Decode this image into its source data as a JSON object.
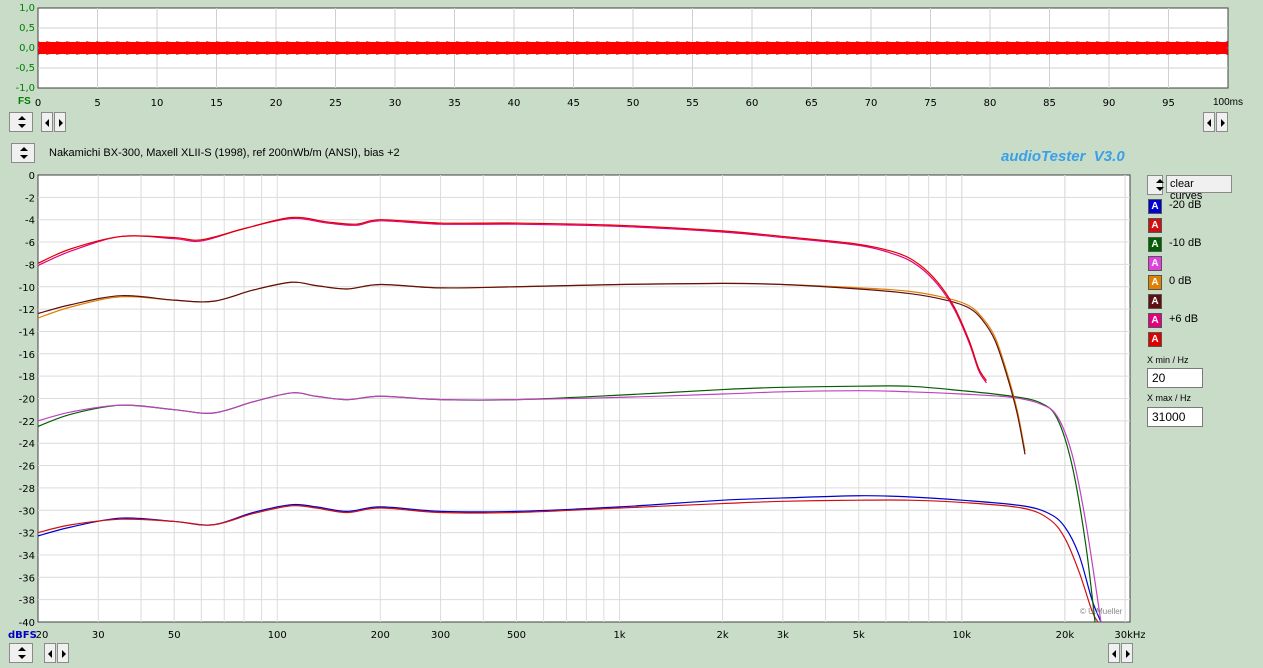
{
  "scope": {
    "fs_label": "FS",
    "y_ticks": [
      "1,0",
      "0,5",
      "0,0",
      "-0,5",
      "-1,0"
    ],
    "x_ticks": [
      "0",
      "5",
      "10",
      "15",
      "20",
      "25",
      "30",
      "35",
      "40",
      "45",
      "50",
      "55",
      "60",
      "65",
      "70",
      "75",
      "80",
      "85",
      "90",
      "95"
    ],
    "x_end_label": "100ms",
    "signal_color": "#ff0000"
  },
  "main": {
    "title": "Nakamichi BX-300, Maxell XLII-S (1998), ref 200nWb/m (ANSI), bias +2",
    "brand": "audioTester  V3.0",
    "brand_color": "#3aa0e8",
    "y_unit_label": "dBFS",
    "x_unit_label": "30kHz",
    "copyright": "© U.Mueller"
  },
  "controls": {
    "clear_curves": "clear curves",
    "xmin_label": "X min / Hz",
    "xmin_value": "20",
    "xmax_label": "X max / Hz",
    "xmax_value": "31000"
  },
  "legend": [
    {
      "glyph": "A",
      "label": "-20 dB",
      "color": "#0000d0"
    },
    {
      "glyph": "A",
      "label": "",
      "color": "#d01010"
    },
    {
      "glyph": "A",
      "label": "-10 dB",
      "color": "#006000"
    },
    {
      "glyph": "A",
      "label": "",
      "color": "#e040e0"
    },
    {
      "glyph": "A",
      "label": "0 dB",
      "color": "#e08000"
    },
    {
      "glyph": "A",
      "label": "",
      "color": "#601010"
    },
    {
      "glyph": "A",
      "label": "+6 dB",
      "color": "#e00080"
    },
    {
      "glyph": "A",
      "label": "",
      "color": "#e00000"
    }
  ],
  "chart_data": {
    "type": "line",
    "xscale": "log",
    "xlim": [
      20,
      31000
    ],
    "ylim": [
      -40,
      0
    ],
    "grid": true,
    "x_tick_labels": [
      "20",
      "30",
      "50",
      "100",
      "200",
      "300",
      "500",
      "1k",
      "2k",
      "3k",
      "5k",
      "10k",
      "20k"
    ],
    "x_tick_values": [
      20,
      30,
      50,
      100,
      200,
      300,
      500,
      1000,
      2000,
      3000,
      5000,
      10000,
      20000
    ],
    "y_tick_labels": [
      "0",
      "-2",
      "-4",
      "-6",
      "-8",
      "-10",
      "-12",
      "-14",
      "-16",
      "-18",
      "-20",
      "-22",
      "-24",
      "-26",
      "-28",
      "-30",
      "-32",
      "-34",
      "-36",
      "-38",
      "-40"
    ],
    "series": [
      {
        "color": "#0000d0",
        "x": [
          20,
          25,
          35,
          50,
          65,
          85,
          110,
          130,
          160,
          200,
          300,
          500,
          1000,
          2000,
          3000,
          5000,
          7000,
          10000,
          15000,
          18000,
          20000,
          22000,
          24000,
          25500
        ],
        "y": [
          -32.3,
          -31.5,
          -30.7,
          -31,
          -31.3,
          -30.2,
          -29.5,
          -29.7,
          -30.1,
          -29.7,
          -30.1,
          -30.1,
          -29.7,
          -29.1,
          -28.9,
          -28.7,
          -28.8,
          -29.1,
          -29.6,
          -30.3,
          -31.5,
          -34,
          -38,
          -40
        ]
      },
      {
        "color": "#d01010",
        "x": [
          20,
          25,
          35,
          50,
          65,
          85,
          110,
          130,
          160,
          200,
          300,
          500,
          1000,
          2000,
          3000,
          5000,
          7000,
          10000,
          15000,
          18000,
          20000,
          22000,
          24000,
          25000
        ],
        "y": [
          -32,
          -31.3,
          -30.8,
          -31,
          -31.3,
          -30.3,
          -29.6,
          -29.8,
          -30.2,
          -29.8,
          -30.2,
          -30.2,
          -29.8,
          -29.4,
          -29.2,
          -29.1,
          -29.1,
          -29.3,
          -29.8,
          -30.8,
          -32.5,
          -35.5,
          -39,
          -40
        ]
      },
      {
        "color": "#006000",
        "x": [
          20,
          25,
          35,
          50,
          65,
          85,
          110,
          130,
          160,
          200,
          300,
          500,
          1000,
          2000,
          3000,
          5000,
          7000,
          10000,
          14000,
          17000,
          19000,
          21000,
          23000,
          24500
        ],
        "y": [
          -22.5,
          -21.4,
          -20.6,
          -21,
          -21.3,
          -20.3,
          -19.5,
          -19.8,
          -20.1,
          -19.8,
          -20.1,
          -20.1,
          -19.7,
          -19.2,
          -19.0,
          -18.9,
          -18.9,
          -19.3,
          -19.8,
          -20.4,
          -21.8,
          -26,
          -33,
          -40
        ]
      },
      {
        "color": "#c040c0",
        "x": [
          20,
          25,
          35,
          50,
          65,
          85,
          110,
          130,
          160,
          200,
          300,
          500,
          1000,
          2000,
          3000,
          5000,
          7000,
          10000,
          14000,
          17000,
          19000,
          21000,
          23000,
          25500
        ],
        "y": [
          -22,
          -21.2,
          -20.6,
          -21,
          -21.3,
          -20.3,
          -19.5,
          -19.8,
          -20.1,
          -19.8,
          -20.1,
          -20.1,
          -19.9,
          -19.6,
          -19.4,
          -19.3,
          -19.4,
          -19.6,
          -19.9,
          -20.5,
          -21.6,
          -25,
          -31,
          -40
        ]
      },
      {
        "color": "#e08000",
        "x": [
          20,
          25,
          35,
          50,
          65,
          85,
          110,
          130,
          160,
          200,
          300,
          500,
          1000,
          2000,
          3000,
          5000,
          7000,
          9000,
          10500,
          11500,
          12500,
          13500,
          14500,
          15300
        ],
        "y": [
          -12.8,
          -11.8,
          -10.9,
          -11.2,
          -11.3,
          -10.3,
          -9.6,
          -9.9,
          -10.2,
          -9.8,
          -10.1,
          -10.0,
          -9.8,
          -9.7,
          -9.8,
          -10.1,
          -10.4,
          -11.0,
          -11.7,
          -12.8,
          -14.5,
          -17.5,
          -21,
          -24.7
        ]
      },
      {
        "color": "#601010",
        "x": [
          20,
          25,
          35,
          50,
          65,
          85,
          110,
          130,
          160,
          200,
          300,
          500,
          1000,
          2000,
          3000,
          5000,
          7000,
          9000,
          10500,
          11500,
          12500,
          13500,
          14500,
          15300
        ],
        "y": [
          -12.4,
          -11.6,
          -10.8,
          -11.2,
          -11.3,
          -10.3,
          -9.6,
          -9.9,
          -10.2,
          -9.8,
          -10.1,
          -10.0,
          -9.8,
          -9.7,
          -9.8,
          -10.2,
          -10.6,
          -11.2,
          -11.9,
          -13,
          -14.8,
          -17.8,
          -21.3,
          -25
        ]
      },
      {
        "color": "#e00080",
        "x": [
          20,
          25,
          35,
          50,
          60,
          80,
          110,
          140,
          170,
          200,
          300,
          500,
          1000,
          2000,
          3000,
          5000,
          6500,
          7500,
          8500,
          9500,
          10500,
          11200,
          11800
        ],
        "y": [
          -8.1,
          -6.8,
          -5.5,
          -5.7,
          -5.9,
          -4.8,
          -3.9,
          -4.3,
          -4.5,
          -4.1,
          -4.4,
          -4.4,
          -4.6,
          -5.1,
          -5.6,
          -6.3,
          -7.2,
          -8.2,
          -9.8,
          -12,
          -15,
          -17.5,
          -18.6
        ]
      },
      {
        "color": "#e00000",
        "x": [
          20,
          25,
          35,
          50,
          60,
          80,
          110,
          140,
          170,
          200,
          300,
          500,
          1000,
          2000,
          3000,
          5000,
          6500,
          7500,
          8500,
          9500,
          10500,
          11200,
          11800
        ],
        "y": [
          -7.9,
          -6.6,
          -5.5,
          -5.6,
          -5.8,
          -4.8,
          -3.8,
          -4.2,
          -4.4,
          -4.0,
          -4.3,
          -4.3,
          -4.5,
          -5.0,
          -5.5,
          -6.2,
          -7.0,
          -8.0,
          -9.6,
          -11.8,
          -14.8,
          -17.3,
          -18.4
        ]
      }
    ]
  }
}
